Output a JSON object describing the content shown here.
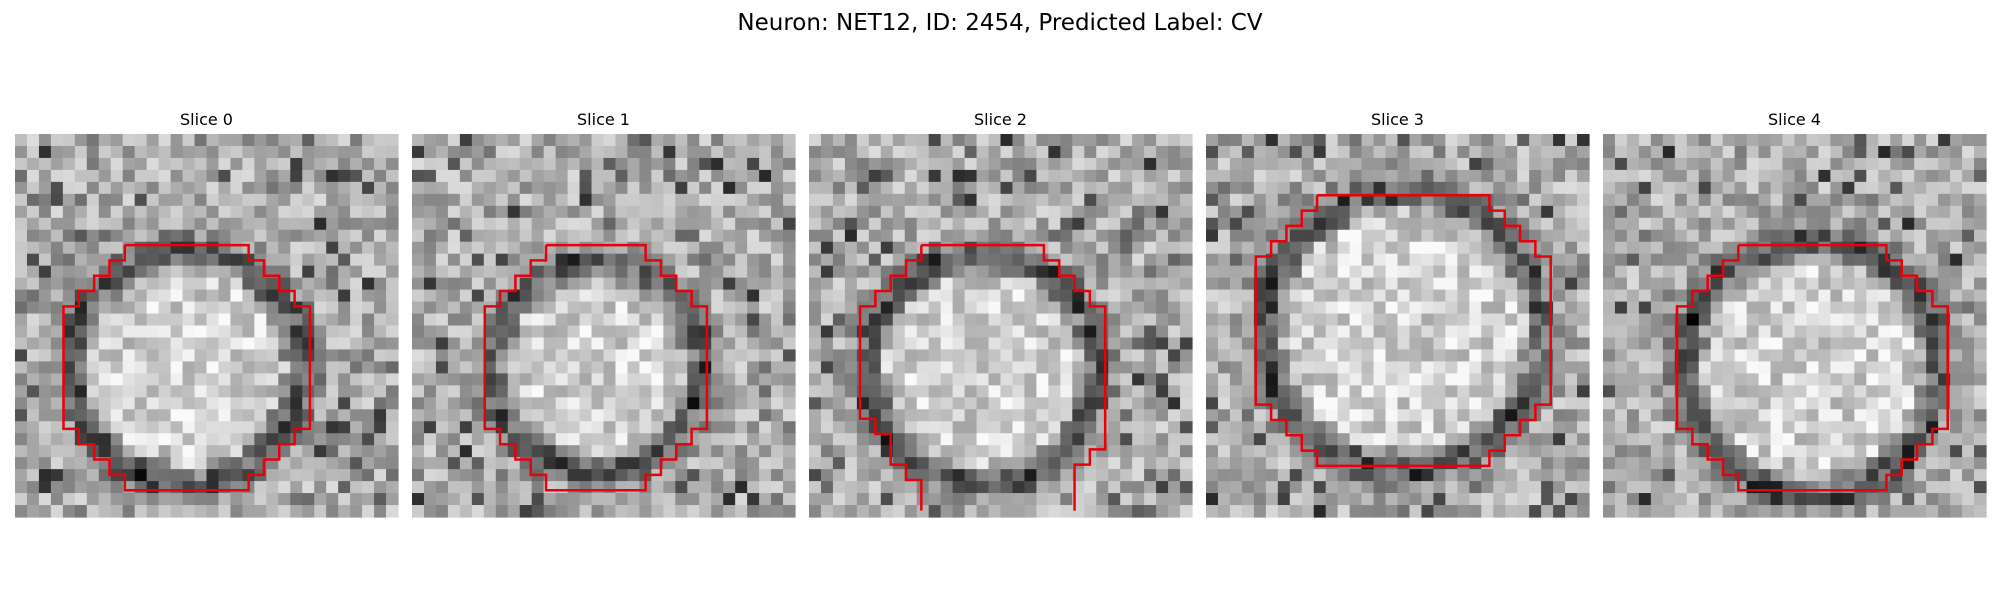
{
  "title": "Neuron: NET12, ID: 2454, Predicted Label: CV",
  "panels": [
    {
      "title": "Slice 0"
    },
    {
      "title": "Slice 1"
    },
    {
      "title": "Slice 2"
    },
    {
      "title": "Slice 3"
    },
    {
      "title": "Slice 4"
    }
  ]
}
